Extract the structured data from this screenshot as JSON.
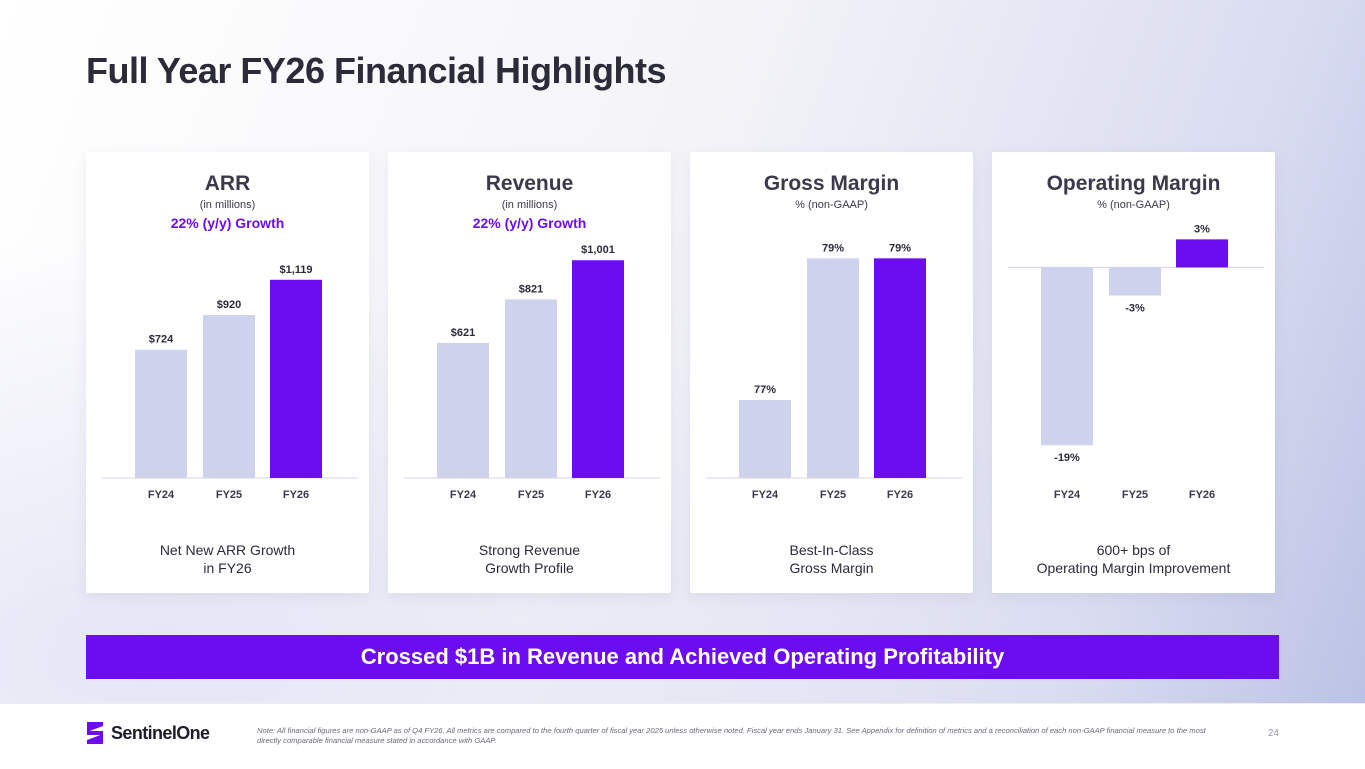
{
  "title": "Full Year FY26 Financial Highlights",
  "colors": {
    "accent": "#6b0df0",
    "bar_light": "#cfd2ec",
    "text_dark": "#2b2b3a"
  },
  "cards": [
    {
      "title": "ARR",
      "subtitle": "(in millions)",
      "growth": "22% (y/y) Growth",
      "caption_line1": "Net New ARR Growth",
      "caption_line2": "in FY26"
    },
    {
      "title": "Revenue",
      "subtitle": "(in millions)",
      "growth": "22% (y/y) Growth",
      "caption_line1": "Strong Revenue",
      "caption_line2": "Growth Profile"
    },
    {
      "title": "Gross Margin",
      "subtitle": "% (non-GAAP)",
      "growth": "",
      "caption_line1": "Best-In-Class",
      "caption_line2": "Gross Margin"
    },
    {
      "title": "Operating Margin",
      "subtitle": "% (non-GAAP)",
      "growth": "",
      "caption_line1": "600+ bps of",
      "caption_line2": "Operating Margin Improvement"
    }
  ],
  "chart_data": [
    {
      "type": "bar",
      "title": "ARR",
      "ylabel": "(in millions)",
      "categories": [
        "FY24",
        "FY25",
        "FY26"
      ],
      "values": [
        724,
        920,
        1119
      ],
      "labels": [
        "$724",
        "$920",
        "$1,119"
      ],
      "ylim": [
        0,
        1400
      ],
      "highlight_index": 2
    },
    {
      "type": "bar",
      "title": "Revenue",
      "ylabel": "(in millions)",
      "categories": [
        "FY24",
        "FY25",
        "FY26"
      ],
      "values": [
        621,
        821,
        1001
      ],
      "labels": [
        "$621",
        "$821",
        "$1,001"
      ],
      "ylim": [
        0,
        1140
      ],
      "highlight_index": 2
    },
    {
      "type": "bar",
      "title": "Gross Margin",
      "ylabel": "% (non-GAAP)",
      "categories": [
        "FY24",
        "FY25",
        "FY26"
      ],
      "values": [
        77,
        79,
        79
      ],
      "labels": [
        "77%",
        "79%",
        "79%"
      ],
      "ylim": [
        75.9,
        79.4
      ],
      "highlight_index": 2
    },
    {
      "type": "bar",
      "title": "Operating Margin",
      "ylabel": "% (non-GAAP)",
      "categories": [
        "FY24",
        "FY25",
        "FY26"
      ],
      "values": [
        -19,
        -3,
        3
      ],
      "labels": [
        "-19%",
        "-3%",
        "3%"
      ],
      "ylim": [
        -22.5,
        4
      ],
      "highlight_index": 2
    }
  ],
  "banner": "Crossed $1B in Revenue and Achieved Operating Profitability",
  "footer": {
    "logo_text": "SentinelOne",
    "note": "Note: All financial figures are non-GAAP as of Q4 FY26. All metrics are compared to the fourth quarter of fiscal year 2025 unless otherwise noted. Fiscal year ends January 31. See Appendix for definition of metrics and a reconciliation of each non-GAAP financial measure to the most directly comparable financial measure stated in accordance with GAAP.",
    "page_number": "24"
  }
}
